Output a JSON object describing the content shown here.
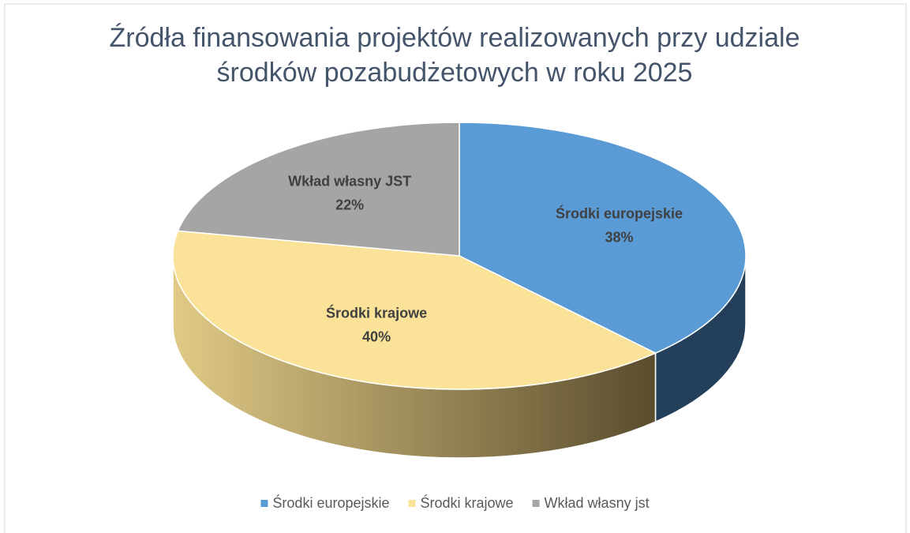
{
  "chart_data": {
    "type": "pie3d",
    "title": "Źródła finansowania projektów realizowanych przy udziale środków pozabudżetowych w roku 2025",
    "categories": [
      "Środki europejskie",
      "Środki krajowe",
      "Wkład własny jst"
    ],
    "label_names": [
      "Środki europejskie",
      "Środki krajowe",
      "Wkład własny JST"
    ],
    "values": [
      38,
      40,
      22
    ],
    "value_labels": [
      "38%",
      "40%",
      "22%"
    ],
    "colors": [
      "#5b9bd5",
      "#fae399",
      "#a5a5a5"
    ],
    "legend": "bottom"
  }
}
